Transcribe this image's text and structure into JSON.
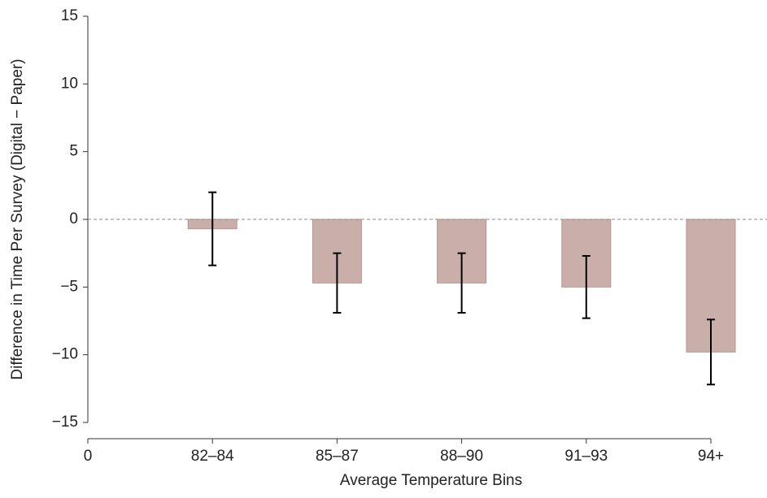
{
  "chart_data": {
    "type": "bar",
    "xlabel": "Average Temperature Bins",
    "ylabel": "Difference in Time Per Survey (Digital − Paper)",
    "x": [
      1,
      2,
      3,
      4,
      5
    ],
    "values": [
      -0.7,
      -4.7,
      -4.7,
      -5.0,
      -9.8
    ],
    "errors": [
      2.7,
      2.2,
      2.2,
      2.3,
      2.4
    ],
    "color": "#c9aeaa",
    "xlim": [
      0,
      5
    ],
    "xticks": [
      0,
      {
        "value": 1,
        "label": "82–84"
      },
      {
        "value": 2,
        "label": "85–87"
      },
      {
        "value": 3,
        "label": "88–90"
      },
      {
        "value": 4,
        "label": "91–93"
      },
      {
        "value": 5,
        "label": "94+"
      }
    ],
    "ylim": [
      -15,
      15
    ],
    "yticks": [
      {
        "value": -15,
        "label": "−15"
      },
      {
        "value": -10,
        "label": "−10"
      },
      {
        "value": -5,
        "label": "−5"
      },
      0,
      5,
      10,
      15
    ],
    "reference_line": 0
  }
}
